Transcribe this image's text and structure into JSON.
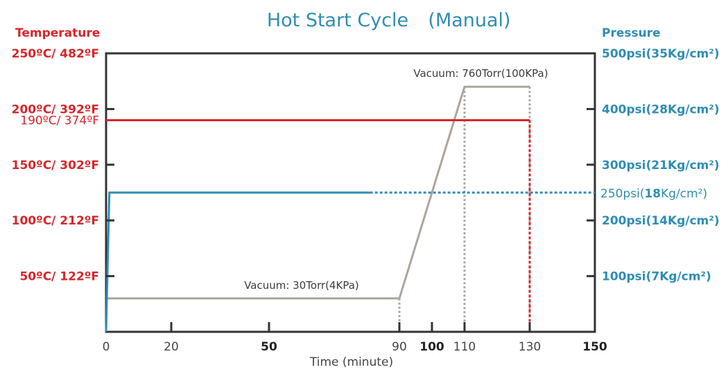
{
  "title": {
    "main": "Hot Start Cycle",
    "mode": "(Manual)"
  },
  "colors": {
    "temperature": "#d7262b",
    "pressure": "#2f8db3",
    "vacuum": "#aca59d",
    "axis": "#333333",
    "tick_text": "#454545"
  },
  "axes": {
    "left_header": "Temperature",
    "right_header": "Pressure",
    "x_label": "Time (minute)"
  },
  "chart_data": {
    "type": "line",
    "title": "Hot Start Cycle (Manual)",
    "xlabel": "Time (minute)",
    "xlim": [
      0,
      150
    ],
    "x_ticks": [
      {
        "value": 0,
        "label": "0",
        "bold": false
      },
      {
        "value": 20,
        "label": "20",
        "bold": false
      },
      {
        "value": 50,
        "label": "50",
        "bold": true
      },
      {
        "value": 90,
        "label": "90",
        "bold": false
      },
      {
        "value": 100,
        "label": "100",
        "bold": true
      },
      {
        "value": 110,
        "label": "110",
        "bold": false
      },
      {
        "value": 130,
        "label": "130",
        "bold": false
      },
      {
        "value": 150,
        "label": "150",
        "bold": true
      }
    ],
    "y_left": {
      "header": "Temperature",
      "unit": "°C",
      "range": [
        0,
        250
      ],
      "ticks": [
        {
          "value": 250,
          "label": "250ºC/ 482ºF"
        },
        {
          "value": 200,
          "label": "200ºC/ 392ºF"
        },
        {
          "value": 150,
          "label": "150ºC/ 302ºF"
        },
        {
          "value": 100,
          "label": "100ºC/ 212ºF"
        },
        {
          "value": 50,
          "label": "50ºC/ 122ºF"
        }
      ],
      "marker": {
        "value": 190,
        "label": "190ºC/ 374ºF"
      }
    },
    "y_right": {
      "header": "Pressure",
      "unit": "psi",
      "range": [
        0,
        500
      ],
      "ticks": [
        {
          "value": 500,
          "label": "500psi(35Kg/cm²)"
        },
        {
          "value": 400,
          "label": "400psi(28Kg/cm²)"
        },
        {
          "value": 300,
          "label": "300psi(21Kg/cm²)"
        },
        {
          "value": 200,
          "label": "200psi(14Kg/cm²)"
        },
        {
          "value": 100,
          "label": "100psi(7Kg/cm²)"
        }
      ],
      "marker": {
        "value": 250,
        "label_pre": "250psi(",
        "label_bold": "18",
        "label_post": "Kg/cm²)"
      }
    },
    "series": [
      {
        "key": "temperature",
        "axis": "left",
        "points": [
          [
            0,
            190
          ],
          [
            130,
            190
          ]
        ],
        "end_drop": {
          "x": 130,
          "to": 0,
          "dashed": true
        }
      },
      {
        "key": "pressure",
        "axis": "right",
        "points": [
          [
            0,
            0
          ],
          [
            1,
            250
          ],
          [
            130,
            250
          ]
        ],
        "dashed_segment": {
          "from": 81,
          "to": 150
        }
      },
      {
        "key": "vacuum",
        "axis": "right",
        "points": [
          [
            0,
            60
          ],
          [
            90,
            60
          ],
          [
            110,
            440
          ],
          [
            130,
            440
          ]
        ],
        "drop_lines": [
          90,
          110,
          130
        ]
      }
    ],
    "annotations": [
      {
        "text": "Vacuum: 30Torr(4KPa)",
        "x": 60,
        "y_psi": 60
      },
      {
        "text": "Vacuum: 760Torr(100KPa)",
        "x": 115,
        "y_psi": 440
      }
    ],
    "grid": false
  }
}
